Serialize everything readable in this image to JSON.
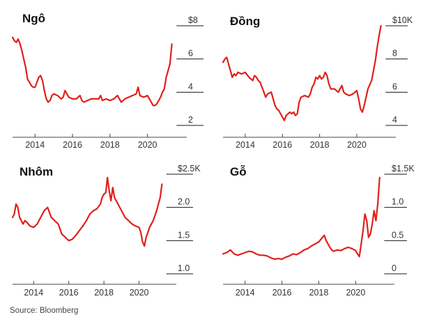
{
  "source": "Source: Bloomberg",
  "colors": {
    "series": "#e0201b",
    "grid": "#1a1a1a",
    "text": "#333333"
  },
  "chart_data": [
    {
      "type": "line",
      "title": "Ngô",
      "xlabel": "",
      "ylabel": "",
      "xlim": [
        2012.8,
        2021.8
      ],
      "ylim": [
        2,
        8
      ],
      "x_ticks": [
        2014,
        2016,
        2018,
        2020
      ],
      "x_tick_labels": [
        "2014",
        "2016",
        "2018",
        "2020"
      ],
      "y_ticks": [
        2,
        4,
        6,
        8
      ],
      "y_tick_labels": [
        "2",
        "4",
        "6",
        "$8"
      ],
      "grid": "horizontal",
      "series": [
        {
          "x": [
            2012.8,
            2012.9,
            2013.0,
            2013.1,
            2013.2,
            2013.3,
            2013.4,
            2013.5,
            2013.6,
            2013.7,
            2013.8,
            2013.9,
            2014.0,
            2014.1,
            2014.2,
            2014.3,
            2014.4,
            2014.5,
            2014.6,
            2014.7,
            2014.8,
            2014.9,
            2015.0,
            2015.2,
            2015.4,
            2015.5,
            2015.6,
            2015.8,
            2016.0,
            2016.2,
            2016.4,
            2016.5,
            2016.6,
            2016.8,
            2017.0,
            2017.2,
            2017.4,
            2017.5,
            2017.6,
            2017.8,
            2018.0,
            2018.2,
            2018.4,
            2018.5,
            2018.6,
            2018.8,
            2019.0,
            2019.2,
            2019.4,
            2019.5,
            2019.6,
            2019.8,
            2020.0,
            2020.2,
            2020.3,
            2020.4,
            2020.5,
            2020.6,
            2020.7,
            2020.8,
            2020.9,
            2021.0,
            2021.1,
            2021.2,
            2021.3
          ],
          "y": [
            7.3,
            7.1,
            7.0,
            7.2,
            6.9,
            6.5,
            6.0,
            5.5,
            4.8,
            4.6,
            4.4,
            4.3,
            4.3,
            4.6,
            4.9,
            5.0,
            4.7,
            4.1,
            3.6,
            3.4,
            3.5,
            3.8,
            3.9,
            3.8,
            3.6,
            3.7,
            4.1,
            3.7,
            3.6,
            3.6,
            3.8,
            3.5,
            3.4,
            3.5,
            3.6,
            3.6,
            3.6,
            3.8,
            3.5,
            3.6,
            3.5,
            3.6,
            3.8,
            3.6,
            3.4,
            3.6,
            3.7,
            3.8,
            3.9,
            4.3,
            3.8,
            3.7,
            3.8,
            3.4,
            3.2,
            3.2,
            3.3,
            3.5,
            3.7,
            4.0,
            4.2,
            4.9,
            5.3,
            5.7,
            6.9
          ]
        }
      ]
    },
    {
      "type": "line",
      "title": "Đồng",
      "xlabel": "",
      "ylabel": "",
      "xlim": [
        2012.8,
        2021.8
      ],
      "ylim": [
        4,
        10
      ],
      "x_ticks": [
        2014,
        2016,
        2018,
        2020
      ],
      "x_tick_labels": [
        "2014",
        "2016",
        "2018",
        "2020"
      ],
      "y_ticks": [
        4,
        6,
        8,
        10
      ],
      "y_tick_labels": [
        "4",
        "6",
        "8",
        "$10K"
      ],
      "grid": "horizontal",
      "series": [
        {
          "x": [
            2012.8,
            2012.9,
            2013.0,
            2013.1,
            2013.2,
            2013.3,
            2013.4,
            2013.5,
            2013.6,
            2013.8,
            2014.0,
            2014.2,
            2014.4,
            2014.5,
            2014.6,
            2014.7,
            2014.8,
            2015.0,
            2015.1,
            2015.2,
            2015.4,
            2015.5,
            2015.6,
            2015.7,
            2015.8,
            2015.9,
            2016.0,
            2016.1,
            2016.2,
            2016.4,
            2016.5,
            2016.6,
            2016.7,
            2016.8,
            2016.9,
            2017.0,
            2017.2,
            2017.4,
            2017.5,
            2017.6,
            2017.7,
            2017.8,
            2017.9,
            2018.0,
            2018.1,
            2018.2,
            2018.3,
            2018.4,
            2018.5,
            2018.6,
            2018.8,
            2019.0,
            2019.2,
            2019.3,
            2019.4,
            2019.6,
            2019.8,
            2020.0,
            2020.1,
            2020.2,
            2020.3,
            2020.4,
            2020.6,
            2020.8,
            2021.0,
            2021.1,
            2021.2,
            2021.3
          ],
          "y": [
            7.8,
            8.0,
            8.1,
            7.7,
            7.3,
            6.9,
            7.1,
            7.0,
            7.2,
            7.1,
            7.2,
            6.9,
            6.7,
            7.0,
            6.9,
            6.7,
            6.6,
            6.0,
            5.7,
            5.9,
            6.0,
            5.6,
            5.2,
            5.0,
            4.9,
            4.7,
            4.5,
            4.3,
            4.6,
            4.8,
            4.7,
            4.8,
            4.6,
            4.7,
            5.4,
            5.7,
            5.8,
            5.7,
            5.9,
            6.3,
            6.5,
            6.9,
            6.8,
            7.0,
            6.8,
            6.9,
            7.2,
            7.0,
            6.5,
            6.2,
            6.2,
            6.0,
            6.4,
            6.0,
            5.9,
            5.8,
            5.9,
            6.1,
            5.6,
            5.0,
            4.8,
            5.2,
            6.2,
            6.7,
            7.9,
            8.7,
            9.4,
            10.0
          ]
        }
      ]
    },
    {
      "type": "line",
      "title": "Nhôm",
      "xlabel": "",
      "ylabel": "",
      "xlim": [
        2012.8,
        2021.8
      ],
      "ylim": [
        1.0,
        2.5
      ],
      "x_ticks": [
        2014,
        2016,
        2018,
        2020
      ],
      "x_tick_labels": [
        "2014",
        "2016",
        "2018",
        "2020"
      ],
      "y_ticks": [
        1.0,
        1.5,
        2.0,
        2.5
      ],
      "y_tick_labels": [
        "1.0",
        "1.5",
        "2.0",
        "$2.5K"
      ],
      "grid": "horizontal",
      "series": [
        {
          "x": [
            2012.8,
            2012.9,
            2013.0,
            2013.1,
            2013.2,
            2013.3,
            2013.4,
            2013.5,
            2013.6,
            2013.8,
            2014.0,
            2014.2,
            2014.4,
            2014.6,
            2014.8,
            2015.0,
            2015.2,
            2015.4,
            2015.6,
            2015.8,
            2016.0,
            2016.2,
            2016.4,
            2016.6,
            2016.8,
            2017.0,
            2017.2,
            2017.4,
            2017.6,
            2017.8,
            2017.9,
            2018.0,
            2018.1,
            2018.2,
            2018.3,
            2018.4,
            2018.5,
            2018.6,
            2018.8,
            2019.0,
            2019.2,
            2019.4,
            2019.6,
            2019.8,
            2020.0,
            2020.1,
            2020.2,
            2020.3,
            2020.4,
            2020.6,
            2020.8,
            2021.0,
            2021.1,
            2021.2,
            2021.3
          ],
          "y": [
            1.85,
            1.9,
            2.05,
            2.0,
            1.85,
            1.8,
            1.75,
            1.8,
            1.78,
            1.72,
            1.7,
            1.75,
            1.85,
            1.95,
            2.0,
            1.85,
            1.8,
            1.75,
            1.6,
            1.55,
            1.5,
            1.52,
            1.58,
            1.65,
            1.72,
            1.8,
            1.9,
            1.95,
            1.98,
            2.05,
            2.15,
            2.2,
            2.22,
            2.45,
            2.25,
            2.1,
            2.3,
            2.15,
            2.05,
            1.95,
            1.85,
            1.8,
            1.75,
            1.72,
            1.7,
            1.62,
            1.48,
            1.42,
            1.55,
            1.7,
            1.8,
            1.95,
            2.05,
            2.15,
            2.35
          ]
        }
      ]
    },
    {
      "type": "line",
      "title": "Gỗ",
      "xlabel": "",
      "ylabel": "",
      "xlim": [
        2012.8,
        2021.8
      ],
      "ylim": [
        0,
        1.5
      ],
      "x_ticks": [
        2014,
        2016,
        2018,
        2020
      ],
      "x_tick_labels": [
        "2014",
        "2016",
        "2018",
        "2020"
      ],
      "y_ticks": [
        0,
        0.5,
        1.0,
        1.5
      ],
      "y_tick_labels": [
        "0",
        "0.5",
        "1.0",
        "$1.5K"
      ],
      "grid": "horizontal",
      "series": [
        {
          "x": [
            2012.8,
            2013.0,
            2013.2,
            2013.4,
            2013.6,
            2013.8,
            2014.0,
            2014.2,
            2014.4,
            2014.6,
            2014.8,
            2015.0,
            2015.2,
            2015.4,
            2015.6,
            2015.8,
            2016.0,
            2016.2,
            2016.4,
            2016.6,
            2016.8,
            2017.0,
            2017.2,
            2017.4,
            2017.6,
            2017.8,
            2018.0,
            2018.2,
            2018.3,
            2018.4,
            2018.5,
            2018.6,
            2018.7,
            2018.8,
            2019.0,
            2019.2,
            2019.4,
            2019.6,
            2019.8,
            2020.0,
            2020.1,
            2020.2,
            2020.3,
            2020.4,
            2020.5,
            2020.6,
            2020.7,
            2020.8,
            2020.9,
            2021.0,
            2021.1,
            2021.2,
            2021.3
          ],
          "y": [
            0.3,
            0.32,
            0.36,
            0.3,
            0.28,
            0.3,
            0.32,
            0.34,
            0.33,
            0.3,
            0.28,
            0.28,
            0.27,
            0.24,
            0.22,
            0.23,
            0.22,
            0.25,
            0.27,
            0.3,
            0.29,
            0.32,
            0.36,
            0.38,
            0.42,
            0.45,
            0.48,
            0.55,
            0.58,
            0.5,
            0.45,
            0.4,
            0.36,
            0.34,
            0.36,
            0.35,
            0.38,
            0.4,
            0.38,
            0.35,
            0.3,
            0.26,
            0.45,
            0.65,
            0.9,
            0.8,
            0.55,
            0.6,
            0.75,
            0.95,
            0.8,
            1.05,
            1.45
          ]
        }
      ]
    }
  ]
}
